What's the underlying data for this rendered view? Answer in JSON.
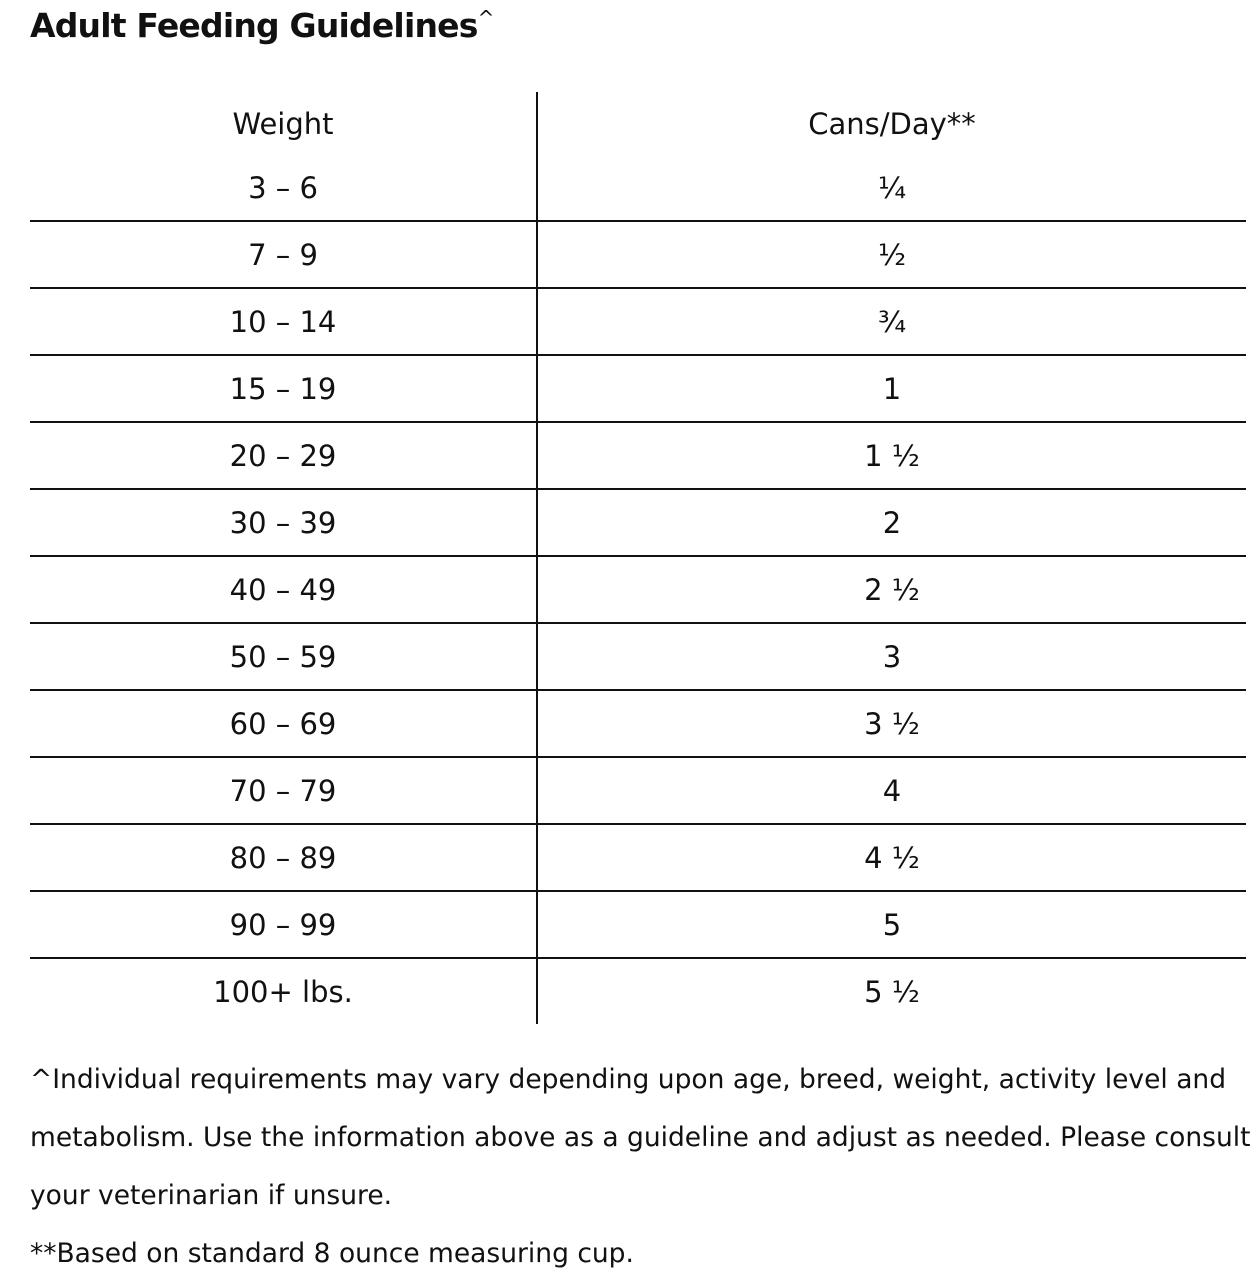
{
  "title": "Adult Feeding Guidelines",
  "title_mark": "^",
  "table": {
    "headers": [
      "Weight",
      "Cans/Day**"
    ],
    "rows": [
      [
        "3 – 6",
        "¼"
      ],
      [
        "7 – 9",
        "½"
      ],
      [
        "10 – 14",
        "¾"
      ],
      [
        "15 – 19",
        "1"
      ],
      [
        "20 – 29",
        "1 ½"
      ],
      [
        "30 – 39",
        "2"
      ],
      [
        "40 – 49",
        "2 ½"
      ],
      [
        "50 – 59",
        "3"
      ],
      [
        "60 – 69",
        "3 ½"
      ],
      [
        "70 – 79",
        "4"
      ],
      [
        "80 – 89",
        "4 ½"
      ],
      [
        "90 – 99",
        "5"
      ],
      [
        "100+ lbs.",
        "5 ½"
      ]
    ]
  },
  "notes": {
    "note1": "^Individual requirements may vary depending upon age, breed, weight, activity level and metabolism. Use the information above as a guideline and adjust as needed. Please consult your veterinarian if unsure.",
    "note2": "**Based on standard 8 ounce measuring cup."
  }
}
